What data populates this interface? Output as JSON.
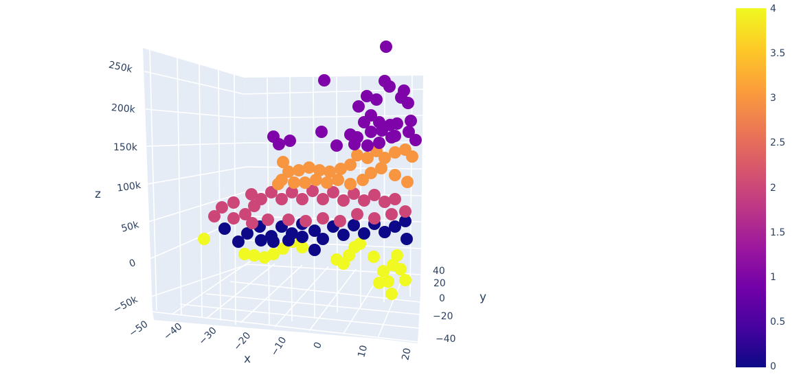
{
  "chart_data": {
    "type": "scatter3d",
    "title": "",
    "axes": {
      "x": {
        "title": "x",
        "ticks": [
          "−50",
          "−40",
          "−30",
          "−20",
          "−10",
          "0",
          "10",
          "20"
        ],
        "range": [
          -50,
          25
        ]
      },
      "y": {
        "title": "y",
        "ticks": [
          "40",
          "20",
          "0",
          "−20",
          "−40"
        ],
        "range": [
          -45,
          45
        ]
      },
      "z": {
        "title": "z",
        "ticks": [
          "250k",
          "200k",
          "150k",
          "100k",
          "50k",
          "0",
          "−50k"
        ],
        "range": [
          -60000,
          280000
        ]
      }
    },
    "colorbar": {
      "ticks": [
        "4",
        "3.5",
        "3",
        "2.5",
        "2",
        "1.5",
        "1",
        "0.5",
        "0"
      ],
      "range": [
        0,
        4
      ],
      "colorscale": "Plasma",
      "stops": [
        "#0d0887",
        "#46039f",
        "#7201a8",
        "#9c179e",
        "#bd3786",
        "#d8576b",
        "#ed7953",
        "#fb9f3a",
        "#fdca26",
        "#f0f921"
      ]
    },
    "cluster_colors": {
      "0": "#0d0887",
      "1": "#7e03a8",
      "2": "#cc4778",
      "3": "#f89540",
      "4": "#f0f921"
    },
    "clusters": [
      {
        "label": 0,
        "description": "dark blue band",
        "z_approx": "30k-60k"
      },
      {
        "label": 1,
        "description": "purple top group",
        "z_approx": "160k-270k"
      },
      {
        "label": 2,
        "description": "magenta band",
        "z_approx": "60k-110k"
      },
      {
        "label": 3,
        "description": "orange band",
        "z_approx": "110k-160k"
      },
      {
        "label": 4,
        "description": "yellow bottom group",
        "z_approx": "-20k-30k"
      }
    ],
    "marker_size": 18,
    "grid": true,
    "legend": "colorbar right"
  }
}
